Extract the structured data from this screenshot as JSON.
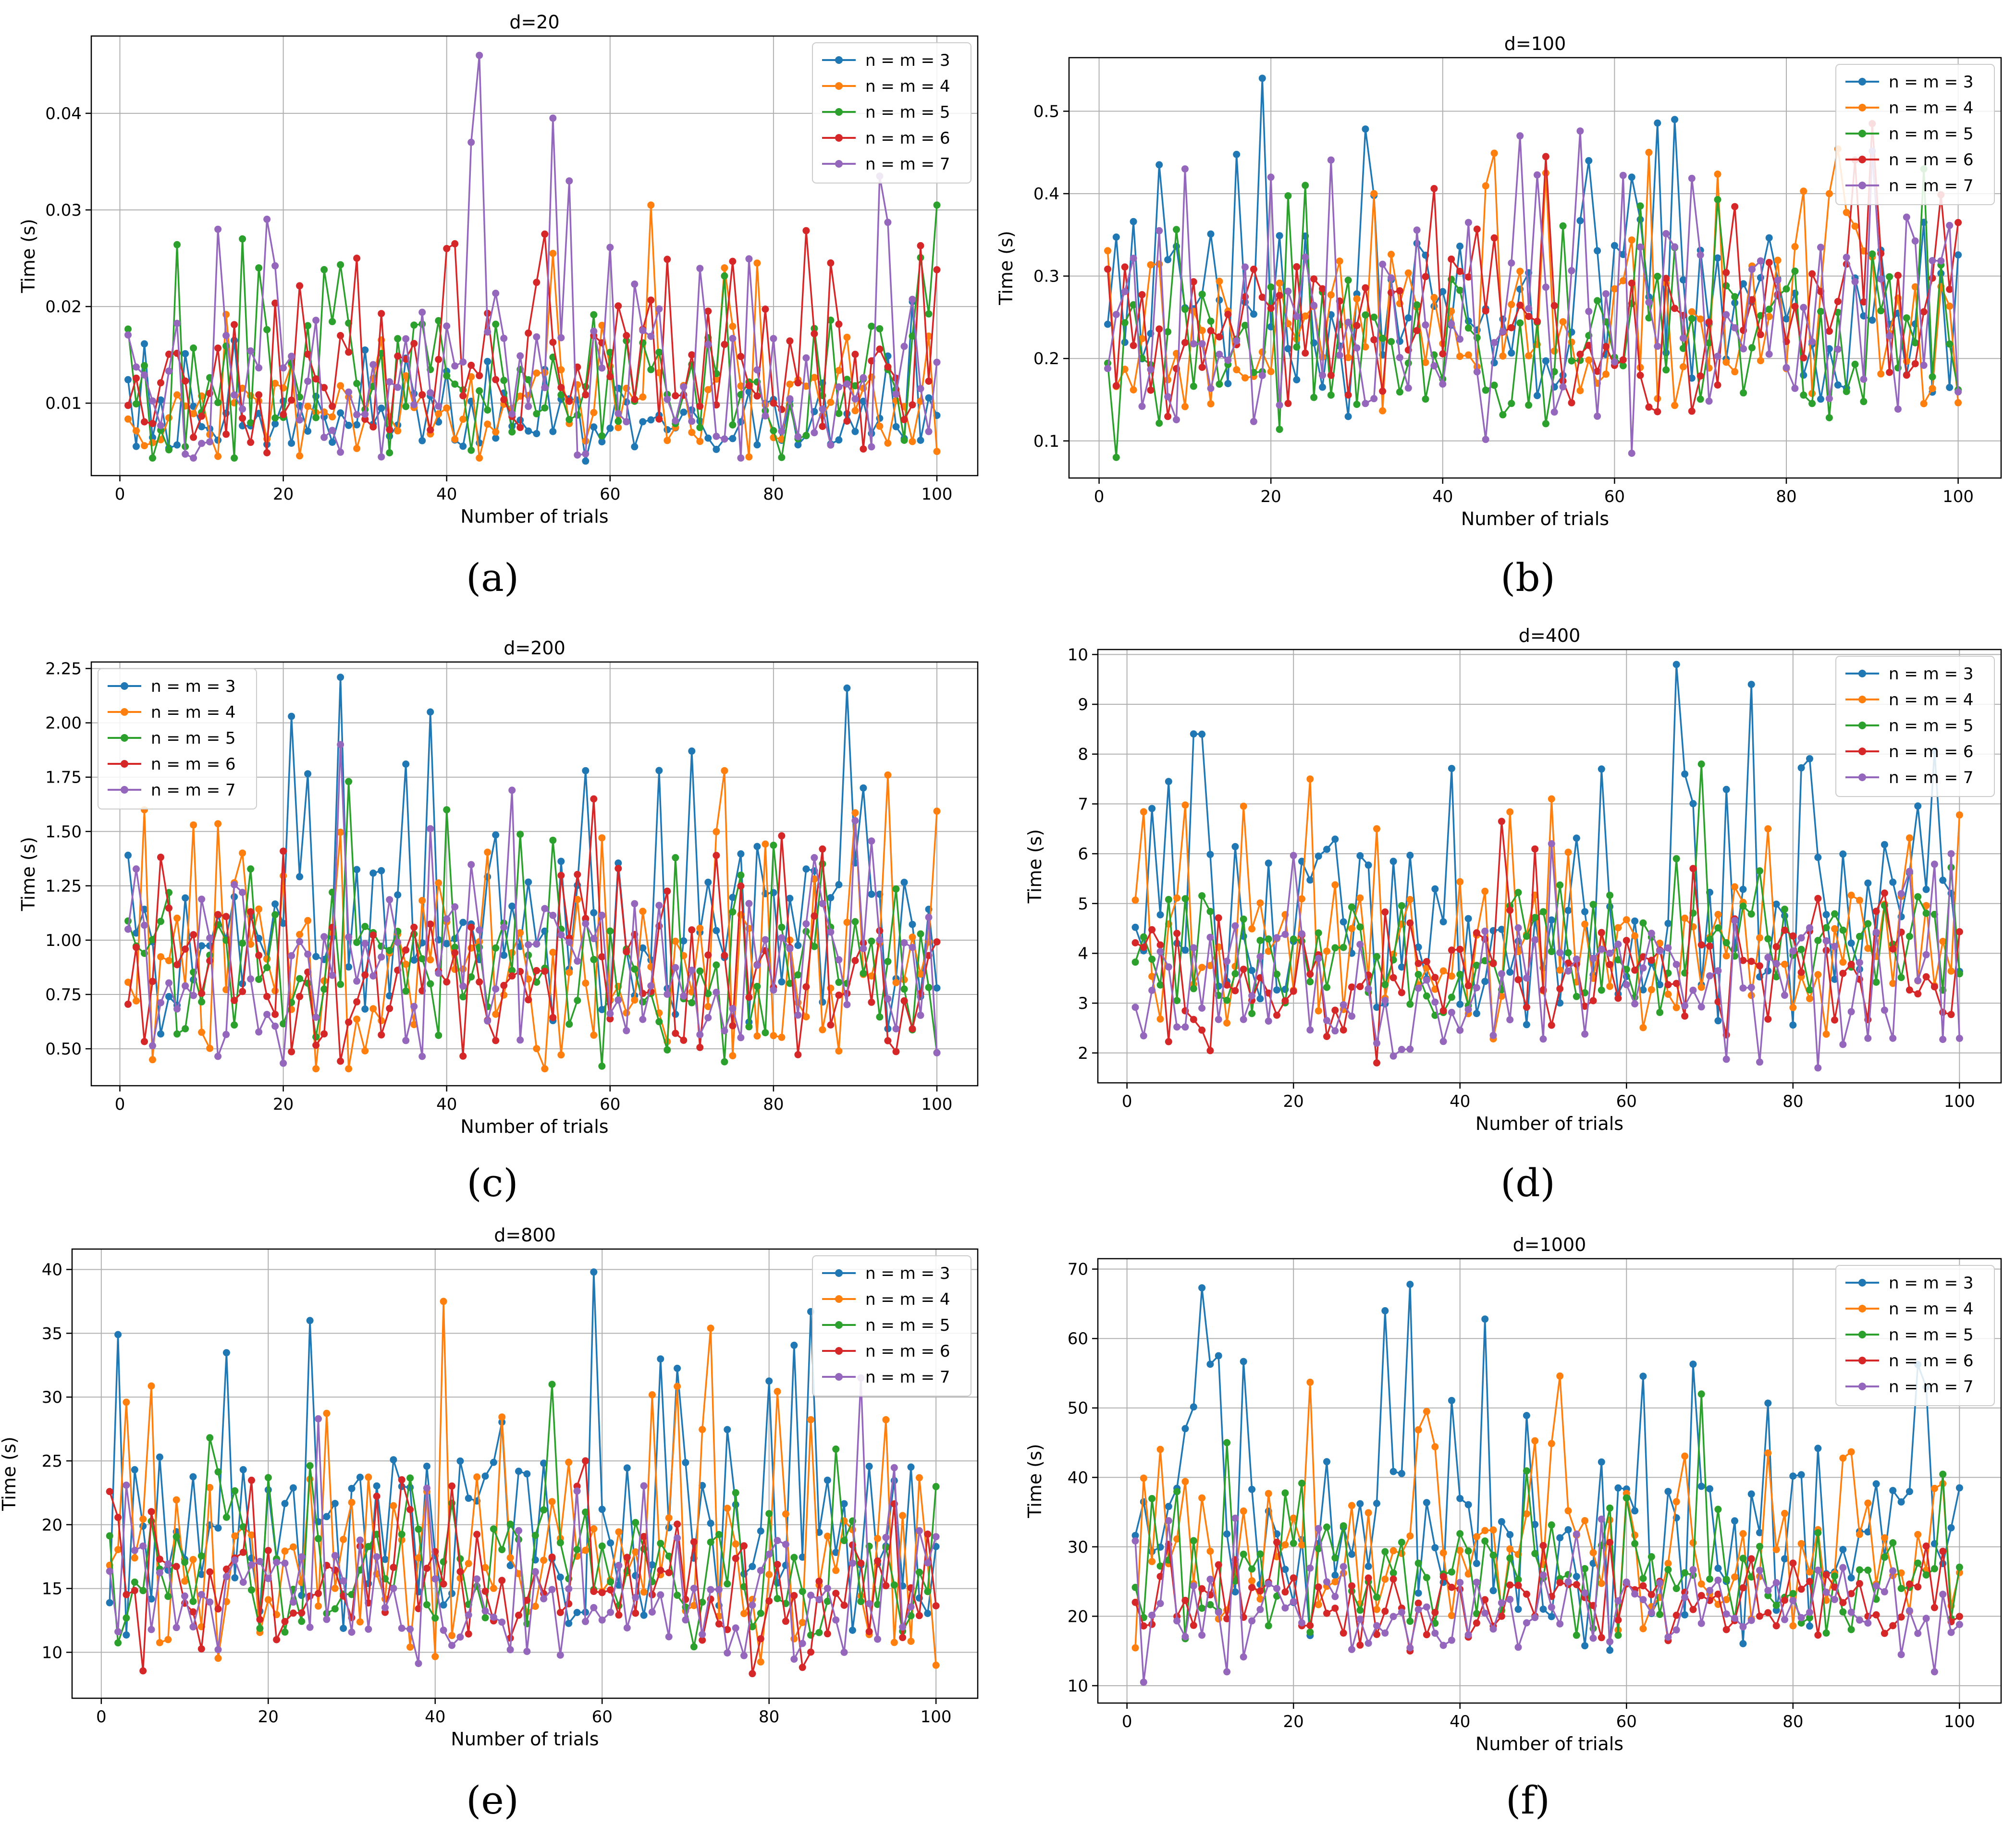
{
  "chart_data": [
    {
      "panel": "(a)",
      "type": "line",
      "title": "d=20",
      "xlabel": "Number of trials",
      "ylabel": "Time (s)",
      "xlim": [
        -3.5,
        105
      ],
      "ylim": [
        0.0025,
        0.048
      ],
      "xticks": [
        0,
        20,
        40,
        60,
        80,
        100
      ],
      "yticks": [
        0.01,
        0.02,
        0.03,
        0.04
      ],
      "ytick_labels": [
        "0.01",
        "0.02",
        "0.03",
        "0.04"
      ],
      "grid": true,
      "legend_position": "top-right",
      "series": [
        {
          "name": "n = m = 3",
          "color": "#1f77b4",
          "base": 0.0085,
          "spread": 0.004,
          "spikes": [
            [
              14,
              0.0165
            ],
            [
              30,
              0.0155
            ],
            [
              57,
              0.004
            ],
            [
              97,
              0.0205
            ]
          ],
          "seed": 11
        },
        {
          "name": "n = m = 4",
          "color": "#ff7f0e",
          "base": 0.0095,
          "spread": 0.005,
          "spikes": [
            [
              53,
              0.0255
            ],
            [
              65,
              0.0305
            ],
            [
              74,
              0.024
            ],
            [
              78,
              0.0245
            ],
            [
              100,
              0.005
            ]
          ],
          "seed": 12
        },
        {
          "name": "n = m = 5",
          "color": "#2ca02c",
          "base": 0.012,
          "spread": 0.0075,
          "spikes": [
            [
              15,
              0.027
            ],
            [
              17,
              0.024
            ],
            [
              100,
              0.0305
            ]
          ],
          "seed": 13
        },
        {
          "name": "n = m = 6",
          "color": "#d62728",
          "base": 0.013,
          "spread": 0.0075,
          "spikes": [
            [
              29,
              0.025
            ],
            [
              40,
              0.026
            ],
            [
              41,
              0.0265
            ],
            [
              51,
              0.0225
            ],
            [
              52,
              0.0275
            ]
          ],
          "seed": 14
        },
        {
          "name": "n = m = 7",
          "color": "#9467bd",
          "base": 0.0125,
          "spread": 0.0085,
          "spikes": [
            [
              12,
              0.028
            ],
            [
              43,
              0.037
            ],
            [
              44,
              0.046
            ],
            [
              53,
              0.0395
            ],
            [
              55,
              0.033
            ],
            [
              93,
              0.0335
            ]
          ],
          "seed": 15
        }
      ]
    },
    {
      "panel": "(b)",
      "type": "line",
      "title": "d=100",
      "xlabel": "Number of trials",
      "ylabel": "Time (s)",
      "xlim": [
        -3.5,
        105
      ],
      "ylim": [
        0.055,
        0.565
      ],
      "xticks": [
        0,
        20,
        40,
        60,
        80,
        100
      ],
      "yticks": [
        0.1,
        0.2,
        0.3,
        0.4,
        0.5
      ],
      "ytick_labels": [
        "0.1",
        "0.2",
        "0.3",
        "0.4",
        "0.5"
      ],
      "grid": true,
      "legend_position": "top-right",
      "series": [
        {
          "name": "n = m = 3",
          "color": "#1f77b4",
          "base": 0.25,
          "spread": 0.12,
          "spikes": [
            [
              7,
              0.435
            ],
            [
              19,
              0.54
            ],
            [
              57,
              0.44
            ],
            [
              62,
              0.42
            ],
            [
              67,
              0.49
            ]
          ],
          "seed": 21
        },
        {
          "name": "n = m = 4",
          "color": "#ff7f0e",
          "base": 0.24,
          "spread": 0.11,
          "spikes": [
            [
              32,
              0.4
            ],
            [
              52,
              0.425
            ],
            [
              64,
              0.45
            ],
            [
              85,
              0.4
            ]
          ],
          "seed": 22
        },
        {
          "name": "n = m = 5",
          "color": "#2ca02c",
          "base": 0.22,
          "spread": 0.1,
          "spikes": [
            [
              2,
              0.08
            ],
            [
              24,
              0.41
            ],
            [
              63,
              0.385
            ],
            [
              96,
              0.43
            ]
          ],
          "seed": 23
        },
        {
          "name": "n = m = 6",
          "color": "#d62728",
          "base": 0.24,
          "spread": 0.11,
          "spikes": [
            [
              52,
              0.445
            ],
            [
              90,
              0.485
            ]
          ],
          "seed": 24
        },
        {
          "name": "n = m = 7",
          "color": "#9467bd",
          "base": 0.24,
          "spread": 0.12,
          "spikes": [
            [
              10,
              0.43
            ],
            [
              20,
              0.42
            ],
            [
              62,
              0.085
            ]
          ],
          "seed": 25
        }
      ]
    },
    {
      "panel": "(c)",
      "type": "line",
      "title": "d=200",
      "xlabel": "Number of trials",
      "ylabel": "Time (s)",
      "xlim": [
        -3.5,
        105
      ],
      "ylim": [
        0.33,
        2.28
      ],
      "xticks": [
        0,
        20,
        40,
        60,
        80,
        100
      ],
      "yticks": [
        0.5,
        0.75,
        1.0,
        1.25,
        1.5,
        1.75,
        2.0,
        2.25
      ],
      "ytick_labels": [
        "0.50",
        "0.75",
        "1.00",
        "1.25",
        "1.50",
        "1.75",
        "2.00",
        "2.25"
      ],
      "grid": true,
      "legend_position": "top-left",
      "series": [
        {
          "name": "n = m = 3",
          "color": "#1f77b4",
          "base": 1.0,
          "spread": 0.45,
          "spikes": [
            [
              21,
              2.03
            ],
            [
              27,
              2.21
            ],
            [
              38,
              2.05
            ],
            [
              57,
              1.78
            ],
            [
              70,
              1.87
            ],
            [
              89,
              2.16
            ]
          ],
          "seed": 31
        },
        {
          "name": "n = m = 4",
          "color": "#ff7f0e",
          "base": 0.85,
          "spread": 0.4,
          "spikes": [
            [
              3,
              1.6
            ],
            [
              9,
              1.53
            ],
            [
              74,
              1.78
            ],
            [
              94,
              1.76
            ]
          ],
          "seed": 32
        },
        {
          "name": "n = m = 5",
          "color": "#2ca02c",
          "base": 0.85,
          "spread": 0.35,
          "spikes": [
            [
              28,
              1.73
            ],
            [
              40,
              1.6
            ],
            [
              59,
              0.42
            ],
            [
              74,
              0.44
            ]
          ],
          "seed": 33
        },
        {
          "name": "n = m = 6",
          "color": "#d62728",
          "base": 0.8,
          "spread": 0.35,
          "spikes": [
            [
              58,
              1.65
            ],
            [
              81,
              1.48
            ]
          ],
          "seed": 34
        },
        {
          "name": "n = m = 7",
          "color": "#9467bd",
          "base": 0.85,
          "spread": 0.4,
          "spikes": [
            [
              27,
              1.9
            ],
            [
              48,
              1.69
            ],
            [
              90,
              1.55
            ]
          ],
          "seed": 35
        }
      ]
    },
    {
      "panel": "(d)",
      "type": "line",
      "title": "d=400",
      "xlabel": "Number of trials",
      "ylabel": "Time (s)",
      "xlim": [
        -3.5,
        105
      ],
      "ylim": [
        1.4,
        10.1
      ],
      "xticks": [
        0,
        20,
        40,
        60,
        80,
        100
      ],
      "yticks": [
        2,
        3,
        4,
        5,
        6,
        7,
        8,
        9,
        10
      ],
      "ytick_labels": [
        "2",
        "3",
        "4",
        "5",
        "6",
        "7",
        "8",
        "9",
        "10"
      ],
      "grid": true,
      "legend_position": "top-right",
      "series": [
        {
          "name": "n = m = 3",
          "color": "#1f77b4",
          "base": 4.5,
          "spread": 2.0,
          "spikes": [
            [
              5,
              7.45
            ],
            [
              9,
              8.4
            ],
            [
              66,
              9.8
            ],
            [
              67,
              7.6
            ],
            [
              75,
              9.4
            ],
            [
              57,
              7.7
            ]
          ],
          "seed": 41
        },
        {
          "name": "n = m = 4",
          "color": "#ff7f0e",
          "base": 4.0,
          "spread": 1.5,
          "spikes": [
            [
              22,
              7.5
            ],
            [
              51,
              7.1
            ],
            [
              77,
              6.5
            ]
          ],
          "seed": 42
        },
        {
          "name": "n = m = 5",
          "color": "#2ca02c",
          "base": 4.0,
          "spread": 1.3,
          "spikes": [
            [
              69,
              7.8
            ],
            [
              66,
              5.9
            ]
          ],
          "seed": 43
        },
        {
          "name": "n = m = 6",
          "color": "#d62728",
          "base": 3.5,
          "spread": 1.3,
          "spikes": [
            [
              45,
              6.65
            ],
            [
              30,
              1.8
            ]
          ],
          "seed": 44
        },
        {
          "name": "n = m = 7",
          "color": "#9467bd",
          "base": 3.3,
          "spread": 1.4,
          "spikes": [
            [
              83,
              1.7
            ],
            [
              99,
              6.0
            ],
            [
              51,
              6.2
            ]
          ],
          "seed": 45
        }
      ]
    },
    {
      "panel": "(e)",
      "type": "line",
      "title": "d=800",
      "xlabel": "Number of trials",
      "ylabel": "Time (s)",
      "xlim": [
        -3.5,
        105
      ],
      "ylim": [
        6.4,
        41.6
      ],
      "xticks": [
        0,
        20,
        40,
        60,
        80,
        100
      ],
      "yticks": [
        10,
        15,
        20,
        25,
        30,
        35,
        40
      ],
      "ytick_labels": [
        "10",
        "15",
        "20",
        "25",
        "30",
        "35",
        "40"
      ],
      "grid": true,
      "legend_position": "top-right",
      "series": [
        {
          "name": "n = m = 3",
          "color": "#1f77b4",
          "base": 19.0,
          "spread": 8.0,
          "spikes": [
            [
              2,
              34.9
            ],
            [
              25,
              36.0
            ],
            [
              59,
              39.8
            ],
            [
              85,
              36.7
            ]
          ],
          "seed": 51
        },
        {
          "name": "n = m = 4",
          "color": "#ff7f0e",
          "base": 17.0,
          "spread": 7.0,
          "spikes": [
            [
              41,
              37.5
            ],
            [
              73,
              35.4
            ],
            [
              3,
              29.6
            ]
          ],
          "seed": 52
        },
        {
          "name": "n = m = 5",
          "color": "#2ca02c",
          "base": 16.0,
          "spread": 5.5,
          "spikes": [
            [
              54,
              31.0
            ],
            [
              76,
              22.5
            ]
          ],
          "seed": 53
        },
        {
          "name": "n = m = 6",
          "color": "#d62728",
          "base": 14.0,
          "spread": 5.0,
          "spikes": [
            [
              1,
              22.6
            ],
            [
              58,
              25.0
            ]
          ],
          "seed": 54
        },
        {
          "name": "n = m = 7",
          "color": "#9467bd",
          "base": 14.0,
          "spread": 5.5,
          "spikes": [
            [
              26,
              28.3
            ],
            [
              91,
              31.5
            ]
          ],
          "seed": 55
        }
      ]
    },
    {
      "panel": "(f)",
      "type": "line",
      "title": "d=1000",
      "xlabel": "Number of trials",
      "ylabel": "Time (s)",
      "xlim": [
        -3.5,
        105
      ],
      "ylim": [
        7.5,
        71.5
      ],
      "xticks": [
        0,
        20,
        40,
        60,
        80,
        100
      ],
      "yticks": [
        10,
        20,
        30,
        40,
        50,
        60,
        70
      ],
      "ytick_labels": [
        "10",
        "20",
        "30",
        "40",
        "50",
        "60",
        "70"
      ],
      "grid": true,
      "legend_position": "top-right",
      "series": [
        {
          "name": "n = m = 3",
          "color": "#1f77b4",
          "base": 30.0,
          "spread": 14.0,
          "spikes": [
            [
              9,
              67.3
            ],
            [
              10,
              56.3
            ],
            [
              31,
              64.0
            ],
            [
              34,
              67.8
            ],
            [
              43,
              62.8
            ],
            [
              96,
              53.0
            ]
          ],
          "seed": 61
        },
        {
          "name": "n = m = 4",
          "color": "#ff7f0e",
          "base": 27.0,
          "spread": 10.0,
          "spikes": [
            [
              22,
              53.7
            ],
            [
              52,
              54.6
            ],
            [
              36,
              49.5
            ]
          ],
          "seed": 62
        },
        {
          "name": "n = m = 5",
          "color": "#2ca02c",
          "base": 25.0,
          "spread": 8.0,
          "spikes": [
            [
              69,
              52.0
            ],
            [
              12,
              45.0
            ]
          ],
          "seed": 63
        },
        {
          "name": "n = m = 6",
          "color": "#d62728",
          "base": 21.0,
          "spread": 5.0,
          "spikes": [
            [
              1,
              22.0
            ],
            [
              34,
              15.0
            ]
          ],
          "seed": 64
        },
        {
          "name": "n = m = 7",
          "color": "#9467bd",
          "base": 21.0,
          "spread": 7.0,
          "spikes": [
            [
              2,
              10.5
            ],
            [
              12,
              12.0
            ],
            [
              97,
              12.0
            ]
          ],
          "seed": 65
        }
      ]
    }
  ]
}
